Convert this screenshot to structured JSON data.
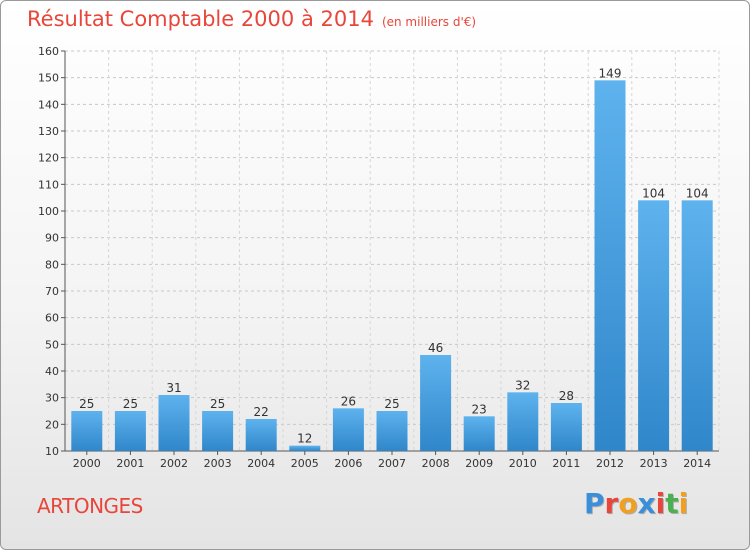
{
  "header": {
    "title": "Résultat Comptable 2000 à 2014",
    "subtitle": "(en milliers d'€)"
  },
  "footer": {
    "commune": "ARTONGES",
    "logo_text": "Proxiti",
    "logo_colors": [
      "#3a8fd8",
      "#e8463a",
      "#f0a020",
      "#3a8fd8",
      "#e8463a",
      "#4caf50",
      "#f0a020"
    ]
  },
  "colors": {
    "bar_top": "#5eb3ee",
    "bar_bottom": "#2f86c9",
    "title": "#e8463a"
  },
  "chart_data": {
    "type": "bar",
    "title": "Résultat Comptable 2000 à 2014",
    "subtitle": "(en milliers d'€)",
    "categories": [
      "2000",
      "2001",
      "2002",
      "2003",
      "2004",
      "2005",
      "2006",
      "2007",
      "2008",
      "2009",
      "2010",
      "2011",
      "2012",
      "2013",
      "2014"
    ],
    "values": [
      25,
      25,
      31,
      25,
      22,
      12,
      26,
      25,
      46,
      23,
      32,
      28,
      149,
      104,
      104
    ],
    "ylim": [
      10,
      160
    ],
    "yticks": [
      10,
      20,
      30,
      40,
      50,
      60,
      70,
      80,
      90,
      100,
      110,
      120,
      130,
      140,
      150,
      160
    ],
    "grid": true,
    "data_labels": true
  }
}
